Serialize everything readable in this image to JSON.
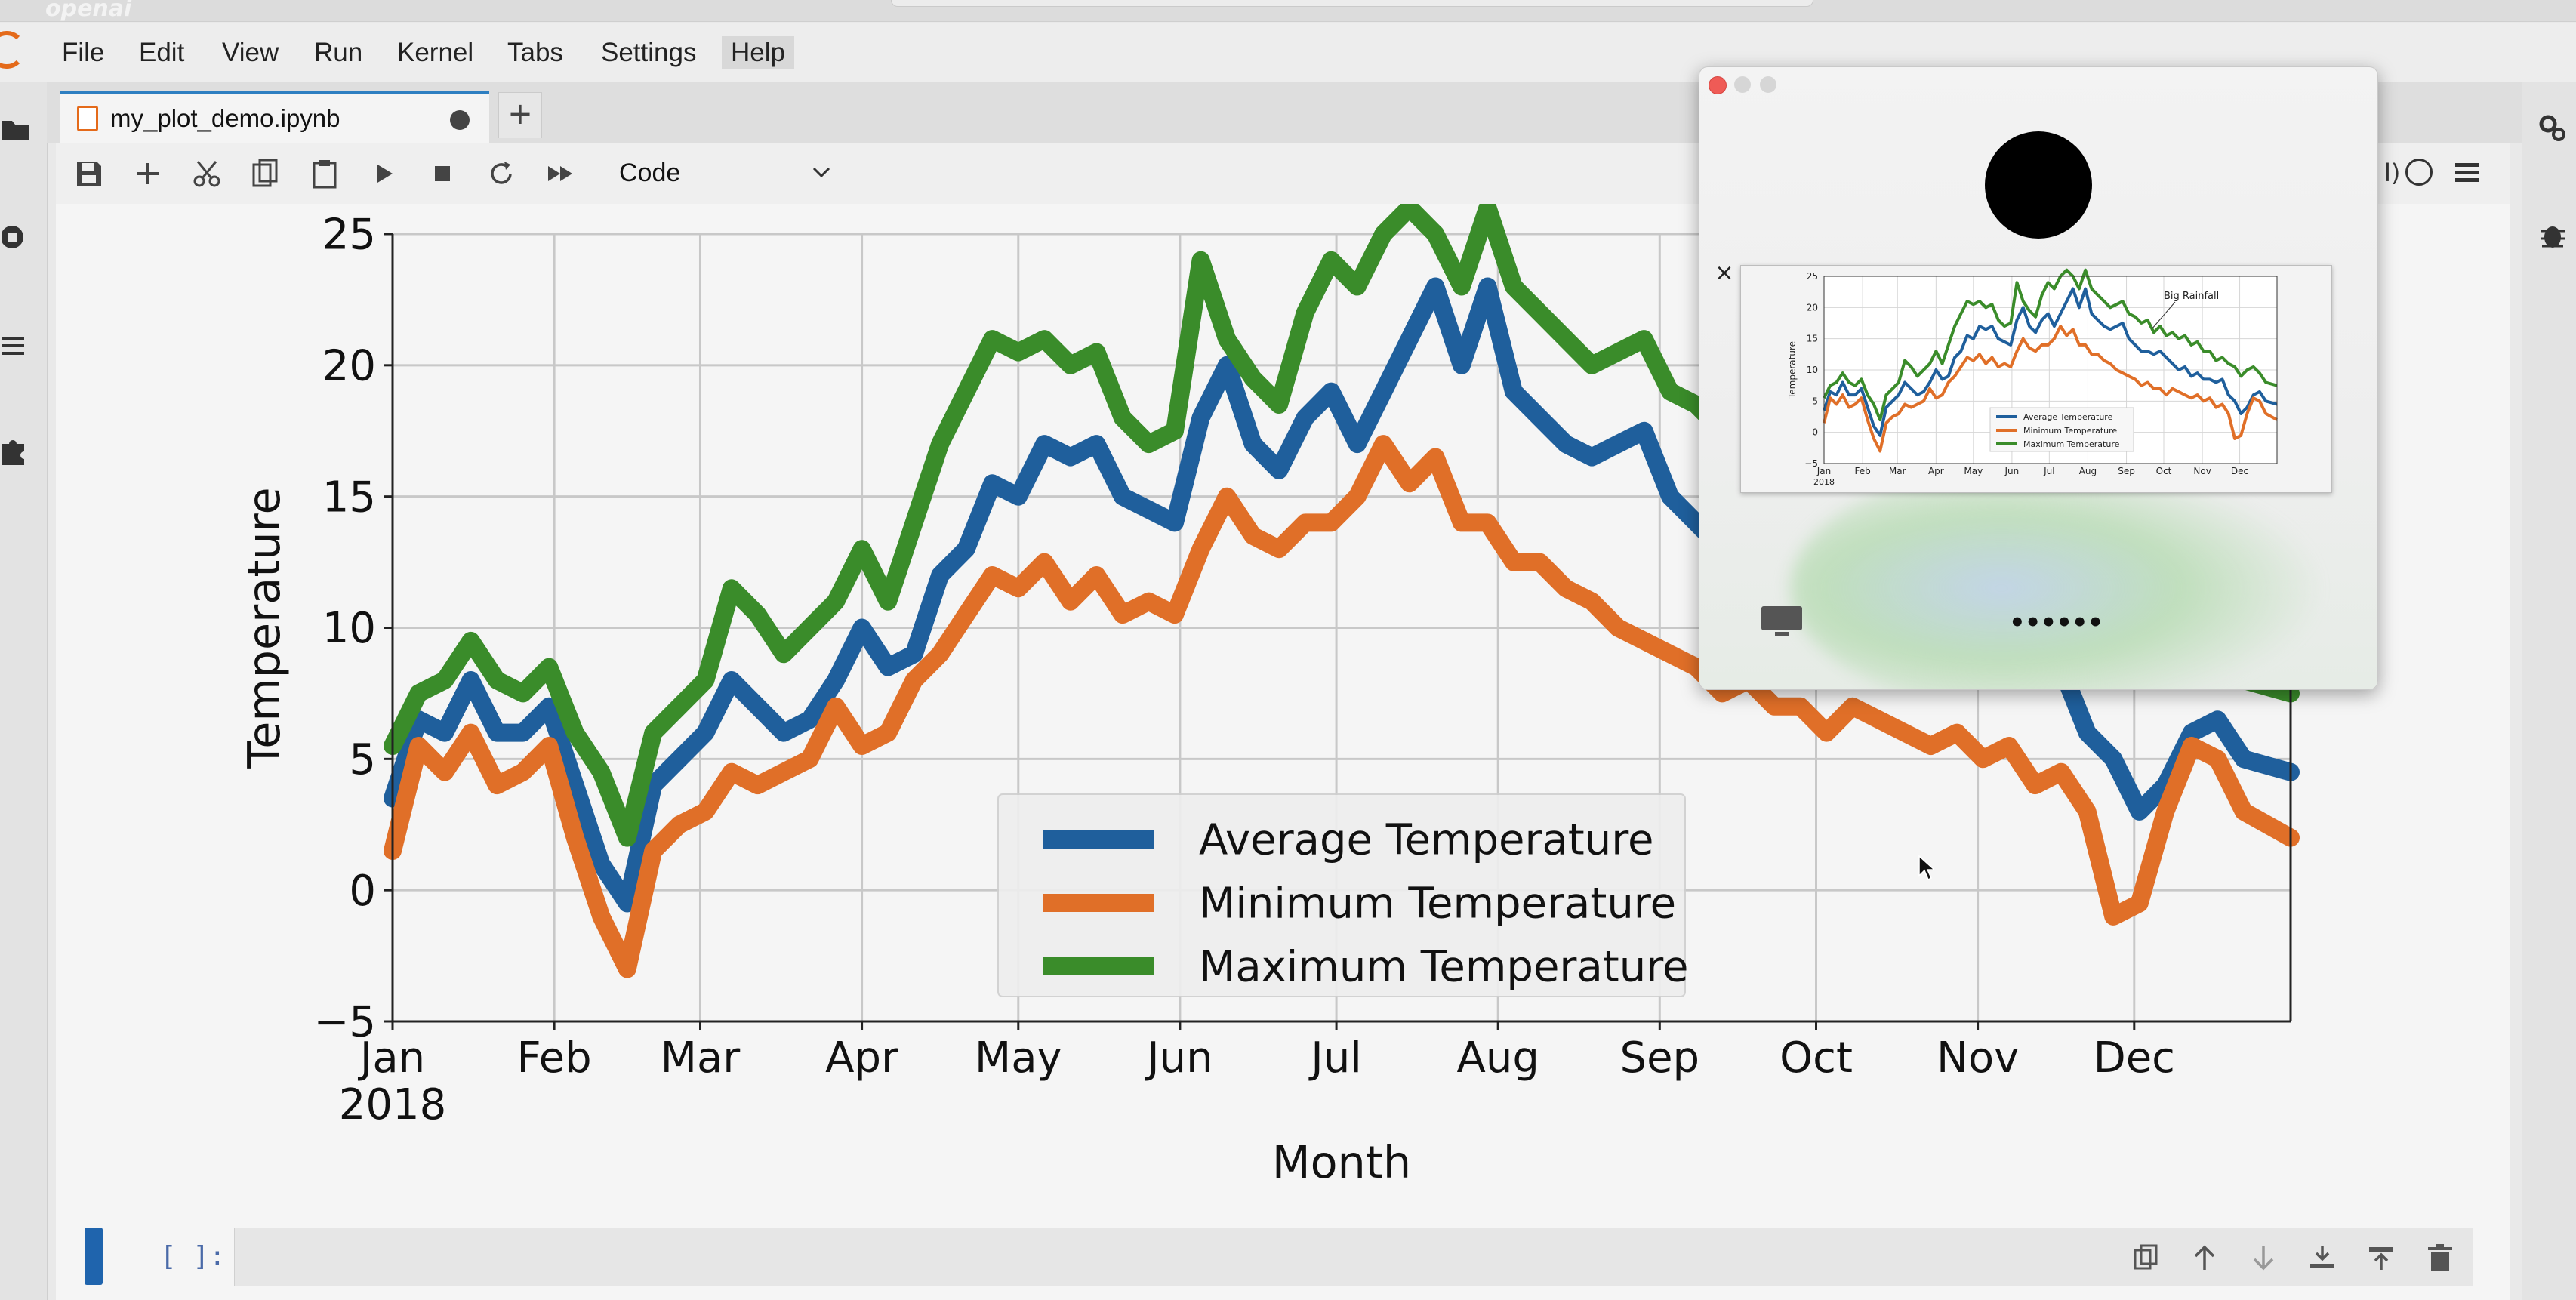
{
  "app": {
    "brand": "openai"
  },
  "menubar": {
    "items": [
      {
        "label": "File"
      },
      {
        "label": "Edit"
      },
      {
        "label": "View"
      },
      {
        "label": "Run"
      },
      {
        "label": "Kernel"
      },
      {
        "label": "Tabs"
      },
      {
        "label": "Settings"
      },
      {
        "label": "Help"
      }
    ]
  },
  "tabs": {
    "active": {
      "label": "my_plot_demo.ipynb",
      "modified": true
    },
    "new_tab": "+"
  },
  "toolbar": {
    "cell_type": "Code",
    "kernel_tail": "l)"
  },
  "icons": {
    "left_rail": [
      "folder-icon",
      "running-icon",
      "toc-icon",
      "extension-icon"
    ],
    "right_rail": [
      "property-inspector-icon",
      "debugger-icon"
    ],
    "toolbar": [
      "save-icon",
      "add-cell-icon",
      "cut-icon",
      "copy-icon",
      "paste-icon",
      "run-icon",
      "stop-icon",
      "restart-icon",
      "run-all-icon"
    ],
    "cell_tools": [
      "duplicate-icon",
      "move-up-icon",
      "move-down-icon",
      "insert-below-icon",
      "insert-above-icon",
      "delete-icon"
    ]
  },
  "cell": {
    "prompt": "[ ]:"
  },
  "colors": {
    "average": "#1f5f9c",
    "minimum": "#e06f28",
    "maximum": "#3a8c2a",
    "accent": "#2e7fc1"
  },
  "popup": {
    "title": "",
    "dots": "••••••",
    "thumb_close": "×",
    "thumbnail": {
      "annotation": "Big Rainfall",
      "ylabel": "Temperature",
      "yticks": [
        "25",
        "20",
        "15",
        "10",
        "5",
        "0",
        "−5"
      ],
      "xticks": [
        "Jan",
        "Feb",
        "Mar",
        "Apr",
        "May",
        "Jun",
        "Jul",
        "Aug",
        "Sep",
        "Oct",
        "Nov",
        "Dec"
      ],
      "year": "2018",
      "legend": [
        "Average Temperature",
        "Minimum Temperature",
        "Maximum Temperature"
      ]
    }
  },
  "chart_data": {
    "type": "line",
    "xlabel": "Month",
    "ylabel": "Temperature",
    "ylim": [
      -5,
      25
    ],
    "yticks": [
      -5,
      0,
      5,
      10,
      15,
      20,
      25
    ],
    "xticks": [
      "Jan",
      "Feb",
      "Mar",
      "Apr",
      "May",
      "Jun",
      "Jul",
      "Aug",
      "Sep",
      "Oct",
      "Nov",
      "Dec"
    ],
    "year_label": "2018",
    "x_days": [
      0,
      5,
      10,
      15,
      20,
      25,
      30,
      35,
      40,
      45,
      50,
      55,
      60,
      65,
      70,
      75,
      80,
      85,
      90,
      95,
      100,
      105,
      110,
      115,
      120,
      125,
      130,
      135,
      140,
      145,
      150,
      155,
      160,
      165,
      170,
      175,
      180,
      185,
      190,
      195,
      200,
      205,
      210,
      215,
      220,
      225,
      230,
      235,
      240,
      245,
      250,
      255,
      260,
      265,
      270,
      275,
      280,
      285,
      290,
      295,
      300,
      305,
      310,
      315,
      320,
      325,
      330,
      335,
      340,
      345,
      350,
      355,
      364
    ],
    "series": [
      {
        "name": "Average Temperature",
        "color": "#1f5f9c",
        "values": [
          3.5,
          6.5,
          6,
          8,
          6,
          6,
          7,
          4,
          1,
          -0.5,
          4,
          5,
          6,
          8,
          7,
          6,
          6.5,
          8,
          10,
          8.5,
          9,
          12,
          13,
          15.5,
          15,
          17,
          16.5,
          17,
          15,
          14.5,
          14,
          18,
          20,
          17,
          16,
          18,
          19,
          17,
          19,
          21,
          23,
          20,
          23,
          19,
          18,
          17,
          16.5,
          17,
          17.5,
          15,
          14,
          13,
          13,
          12.5,
          13,
          12,
          11,
          10,
          10.5,
          9,
          9.5,
          8.5,
          8.5,
          8,
          8.5,
          6,
          5,
          3,
          4,
          6,
          6.5,
          5,
          4.5
        ]
      },
      {
        "name": "Minimum Temperature",
        "color": "#e06f28",
        "values": [
          1.5,
          5.5,
          4.5,
          6,
          4,
          4.5,
          5.5,
          2,
          -1,
          -3,
          1.5,
          2.5,
          3,
          4.5,
          4,
          4.5,
          5,
          7,
          5.5,
          6,
          8,
          9,
          10.5,
          12,
          11.5,
          12.5,
          11,
          12,
          10.5,
          11,
          10.5,
          13,
          15,
          13.5,
          13,
          14,
          14,
          15,
          17,
          15.5,
          16.5,
          14,
          14,
          12.5,
          12.5,
          11.5,
          11,
          10,
          9.5,
          9,
          8.5,
          7.5,
          8,
          7,
          7,
          6,
          7,
          6.5,
          6,
          5.5,
          6,
          5,
          5.5,
          4,
          4.5,
          3,
          -1,
          -0.5,
          3,
          5.5,
          5,
          3,
          2
        ]
      },
      {
        "name": "Maximum Temperature",
        "color": "#3a8c2a",
        "values": [
          5.5,
          7.5,
          8,
          9.5,
          8,
          7.5,
          8.5,
          6,
          4.5,
          2,
          6,
          7,
          8,
          11.5,
          10.5,
          9,
          10,
          11,
          13,
          11,
          14,
          17,
          19,
          21,
          20.5,
          21,
          20,
          20.5,
          18,
          17,
          17.5,
          24,
          21,
          19.5,
          18.5,
          22,
          24,
          23,
          25,
          26,
          25,
          23,
          26,
          23,
          22,
          21,
          20,
          20.5,
          21,
          19,
          18.5,
          17.5,
          18,
          16,
          17,
          15.5,
          16,
          15,
          15.5,
          14,
          14.5,
          13,
          13,
          11.5,
          12,
          11,
          10.5,
          9,
          10,
          10.5,
          9.5,
          8,
          7.5
        ]
      }
    ],
    "legend": [
      "Average Temperature",
      "Minimum Temperature",
      "Maximum Temperature"
    ],
    "legend_position": "bottom-center",
    "grid": true
  }
}
